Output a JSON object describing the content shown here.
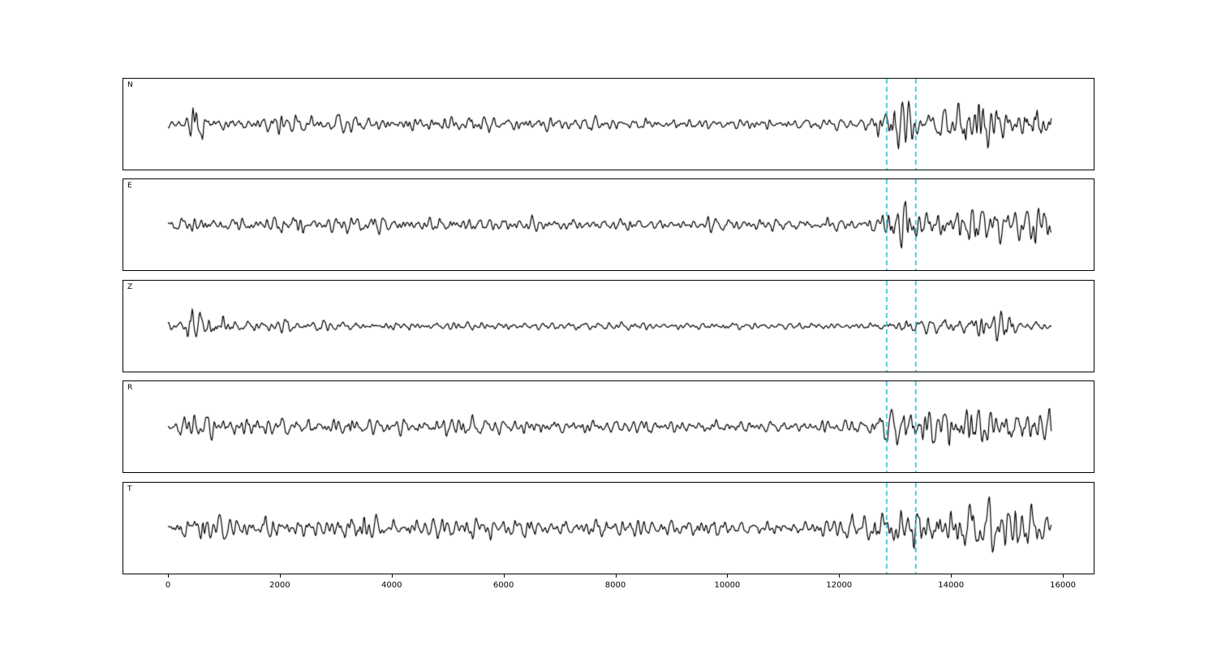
{
  "figure": {
    "background": "#ffffff"
  },
  "chart_data": {
    "type": "line",
    "kind": "seismogram-multipanel",
    "title": "",
    "xlabel": "",
    "ylabel": "",
    "x_ticks": [
      0,
      2000,
      4000,
      6000,
      8000,
      10000,
      12000,
      14000,
      16000
    ],
    "xlim": [
      -800,
      16580
    ],
    "x_data_start": 0,
    "x_data_end": 15800,
    "grid": false,
    "legend": "none",
    "line_color": "#000000",
    "pick_lines": {
      "values": [
        12850,
        13370
      ],
      "color": "#17becf",
      "style": "dashed"
    },
    "panels": [
      {
        "label": "N",
        "seed": 3,
        "envelope": [
          [
            0,
            5
          ],
          [
            300,
            6
          ],
          [
            400,
            30
          ],
          [
            550,
            34
          ],
          [
            700,
            14
          ],
          [
            1000,
            11
          ],
          [
            1500,
            10
          ],
          [
            2200,
            12
          ],
          [
            3000,
            10
          ],
          [
            4000,
            9
          ],
          [
            5000,
            11
          ],
          [
            5600,
            13
          ],
          [
            6500,
            8
          ],
          [
            7500,
            8
          ],
          [
            8500,
            8
          ],
          [
            9500,
            7
          ],
          [
            10500,
            7
          ],
          [
            11500,
            7
          ],
          [
            12600,
            8
          ],
          [
            12850,
            26
          ],
          [
            13050,
            32
          ],
          [
            13400,
            28
          ],
          [
            13800,
            22
          ],
          [
            14200,
            26
          ],
          [
            14700,
            40
          ],
          [
            15000,
            28
          ],
          [
            15400,
            32
          ],
          [
            15800,
            20
          ]
        ]
      },
      {
        "label": "E",
        "seed": 7,
        "envelope": [
          [
            0,
            6
          ],
          [
            400,
            10
          ],
          [
            800,
            9
          ],
          [
            1300,
            12
          ],
          [
            1800,
            13
          ],
          [
            2500,
            10
          ],
          [
            3200,
            11
          ],
          [
            4000,
            9
          ],
          [
            5000,
            10
          ],
          [
            6000,
            9
          ],
          [
            7000,
            8
          ],
          [
            8000,
            8
          ],
          [
            9000,
            8
          ],
          [
            10000,
            8
          ],
          [
            11000,
            8
          ],
          [
            12000,
            8
          ],
          [
            12600,
            8
          ],
          [
            12900,
            24
          ],
          [
            13300,
            34
          ],
          [
            13500,
            28
          ],
          [
            14000,
            20
          ],
          [
            14500,
            26
          ],
          [
            15000,
            22
          ],
          [
            15500,
            30
          ],
          [
            15800,
            14
          ]
        ]
      },
      {
        "label": "Z",
        "seed": 13,
        "envelope": [
          [
            0,
            4
          ],
          [
            330,
            8
          ],
          [
            420,
            46
          ],
          [
            520,
            38
          ],
          [
            620,
            24
          ],
          [
            800,
            16
          ],
          [
            1100,
            11
          ],
          [
            1600,
            8
          ],
          [
            2200,
            7
          ],
          [
            3000,
            6
          ],
          [
            4000,
            6
          ],
          [
            5000,
            6
          ],
          [
            6000,
            5
          ],
          [
            7000,
            5
          ],
          [
            8000,
            5
          ],
          [
            9000,
            5
          ],
          [
            10000,
            5
          ],
          [
            11000,
            4
          ],
          [
            12000,
            4
          ],
          [
            12850,
            6
          ],
          [
            13370,
            8
          ],
          [
            13800,
            12
          ],
          [
            14300,
            10
          ],
          [
            14700,
            20
          ],
          [
            15200,
            12
          ],
          [
            15800,
            6
          ]
        ]
      },
      {
        "label": "R",
        "seed": 21,
        "envelope": [
          [
            0,
            5
          ],
          [
            350,
            20
          ],
          [
            600,
            16
          ],
          [
            1000,
            13
          ],
          [
            1600,
            12
          ],
          [
            2300,
            13
          ],
          [
            3000,
            11
          ],
          [
            3800,
            10
          ],
          [
            4800,
            12
          ],
          [
            5800,
            11
          ],
          [
            6800,
            10
          ],
          [
            7800,
            9
          ],
          [
            9000,
            8
          ],
          [
            10200,
            8
          ],
          [
            11400,
            8
          ],
          [
            12500,
            8
          ],
          [
            12900,
            28
          ],
          [
            13300,
            36
          ],
          [
            13600,
            30
          ],
          [
            14000,
            22
          ],
          [
            14500,
            28
          ],
          [
            15000,
            24
          ],
          [
            15500,
            26
          ],
          [
            15800,
            15
          ]
        ]
      },
      {
        "label": "T",
        "seed": 29,
        "envelope": [
          [
            0,
            7
          ],
          [
            400,
            18
          ],
          [
            700,
            14
          ],
          [
            1200,
            14
          ],
          [
            1800,
            15
          ],
          [
            2300,
            16
          ],
          [
            3000,
            12
          ],
          [
            3400,
            19
          ],
          [
            4000,
            12
          ],
          [
            5000,
            14
          ],
          [
            6000,
            13
          ],
          [
            7000,
            12
          ],
          [
            8000,
            12
          ],
          [
            9000,
            11
          ],
          [
            10000,
            11
          ],
          [
            11000,
            10
          ],
          [
            12000,
            10
          ],
          [
            12850,
            26
          ],
          [
            13200,
            32
          ],
          [
            13600,
            26
          ],
          [
            14200,
            30
          ],
          [
            14700,
            36
          ],
          [
            15100,
            24
          ],
          [
            15500,
            32
          ],
          [
            15800,
            17
          ]
        ]
      }
    ]
  }
}
